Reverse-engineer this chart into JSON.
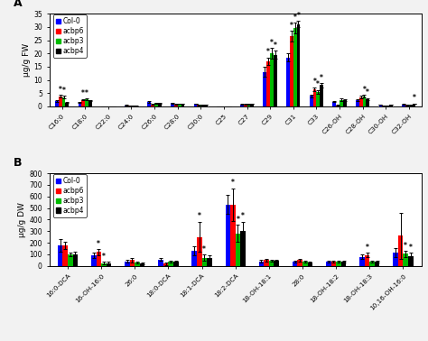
{
  "panel_A": {
    "categories": [
      "C16:0",
      "C18:0",
      "C22:0",
      "C24:0",
      "C26:0",
      "C28:0",
      "C30:0",
      "C25",
      "C27",
      "C29",
      "C31",
      "C33",
      "C26-OH",
      "C28-OH",
      "C30-OH",
      "C32-OH"
    ],
    "ylabel": "µg/g FW",
    "ylim": [
      0,
      35
    ],
    "yticks": [
      0,
      5,
      10,
      15,
      20,
      25,
      30,
      35
    ],
    "series": {
      "Col-0": [
        2.0,
        1.5,
        0.05,
        0.4,
        1.7,
        1.2,
        1.0,
        0.05,
        0.8,
        13.0,
        18.5,
        4.0,
        1.8,
        2.3,
        0.6,
        0.8
      ],
      "acbp6": [
        3.8,
        2.5,
        0.05,
        0.2,
        0.8,
        0.8,
        0.5,
        0.1,
        0.8,
        17.0,
        26.5,
        6.5,
        0.4,
        3.5,
        0.3,
        0.5
      ],
      "acbp3": [
        3.5,
        2.7,
        0.05,
        0.2,
        1.2,
        1.0,
        0.5,
        0.1,
        0.8,
        20.0,
        29.5,
        5.5,
        2.5,
        3.8,
        0.3,
        0.5
      ],
      "acbp4": [
        1.5,
        2.2,
        0.05,
        0.2,
        1.2,
        1.0,
        0.6,
        0.05,
        1.0,
        19.5,
        31.0,
        8.0,
        2.3,
        2.8,
        0.6,
        1.0
      ]
    },
    "errors": {
      "Col-0": [
        0.3,
        0.2,
        0.02,
        0.1,
        0.2,
        0.1,
        0.1,
        0.02,
        0.1,
        1.8,
        1.5,
        0.5,
        0.2,
        0.3,
        0.1,
        0.1
      ],
      "acbp6": [
        0.5,
        0.3,
        0.02,
        0.1,
        0.2,
        0.1,
        0.05,
        0.02,
        0.1,
        1.5,
        2.0,
        0.8,
        0.1,
        0.5,
        0.1,
        0.1
      ],
      "acbp3": [
        0.5,
        0.3,
        0.02,
        0.1,
        0.2,
        0.1,
        0.05,
        0.02,
        0.1,
        2.0,
        2.0,
        0.7,
        0.4,
        0.5,
        0.1,
        0.1
      ],
      "acbp4": [
        0.2,
        0.2,
        0.02,
        0.1,
        0.2,
        0.1,
        0.1,
        0.02,
        0.1,
        1.5,
        1.2,
        0.7,
        0.3,
        0.3,
        0.1,
        0.1
      ]
    },
    "stars": {
      "Col-0": [
        false,
        false,
        false,
        false,
        false,
        false,
        false,
        false,
        false,
        false,
        false,
        false,
        false,
        false,
        false,
        false
      ],
      "acbp6": [
        true,
        true,
        false,
        false,
        false,
        false,
        false,
        false,
        false,
        true,
        true,
        true,
        false,
        false,
        false,
        false
      ],
      "acbp3": [
        true,
        true,
        false,
        false,
        false,
        false,
        false,
        false,
        false,
        true,
        true,
        true,
        false,
        true,
        false,
        false
      ],
      "acbp4": [
        false,
        false,
        false,
        false,
        false,
        false,
        false,
        false,
        false,
        true,
        true,
        true,
        false,
        true,
        false,
        true
      ]
    }
  },
  "panel_B": {
    "categories": [
      "16:0-DCA",
      "16-OH-16:0",
      "26:0",
      "18:0-DCA",
      "18:1-DCA",
      "18:2-DCA",
      "18-OH-18:1",
      "28:0",
      "18-OH-18:2",
      "18-OH-18:3",
      "10,16-OH-16:0"
    ],
    "ylabel": "µg/g DW",
    "ylim": [
      0,
      800
    ],
    "yticks": [
      0,
      100,
      200,
      300,
      400,
      500,
      600,
      700,
      800
    ],
    "series": {
      "Col-0": [
        175,
        90,
        40,
        55,
        130,
        530,
        40,
        38,
        38,
        78,
        115
      ],
      "acbp6": [
        175,
        120,
        50,
        20,
        250,
        530,
        50,
        50,
        35,
        95,
        260
      ],
      "acbp3": [
        100,
        25,
        30,
        38,
        70,
        280,
        48,
        35,
        38,
        38,
        105
      ],
      "acbp4": [
        100,
        25,
        20,
        35,
        72,
        305,
        45,
        28,
        38,
        38,
        88
      ]
    },
    "errors": {
      "Col-0": [
        55,
        25,
        12,
        12,
        40,
        80,
        12,
        10,
        8,
        18,
        40
      ],
      "acbp6": [
        30,
        25,
        18,
        12,
        130,
        140,
        12,
        12,
        8,
        18,
        200
      ],
      "acbp3": [
        18,
        12,
        8,
        8,
        28,
        75,
        8,
        8,
        8,
        8,
        25
      ],
      "acbp4": [
        22,
        12,
        8,
        8,
        18,
        75,
        8,
        8,
        8,
        8,
        25
      ]
    },
    "stars": {
      "Col-0": [
        false,
        false,
        false,
        false,
        false,
        false,
        false,
        false,
        false,
        false,
        false
      ],
      "acbp6": [
        false,
        true,
        false,
        false,
        true,
        true,
        false,
        false,
        false,
        true,
        false
      ],
      "acbp3": [
        false,
        true,
        false,
        false,
        true,
        true,
        false,
        false,
        false,
        false,
        true
      ],
      "acbp4": [
        false,
        false,
        false,
        false,
        false,
        true,
        false,
        false,
        false,
        false,
        true
      ]
    }
  },
  "colors": [
    "#0000ff",
    "#ff0000",
    "#00bb00",
    "#000000"
  ],
  "series_names": [
    "Col-0",
    "acbp6",
    "acbp3",
    "acbp4"
  ],
  "bar_width": 0.15,
  "fig_bg": "#f0f0f0"
}
